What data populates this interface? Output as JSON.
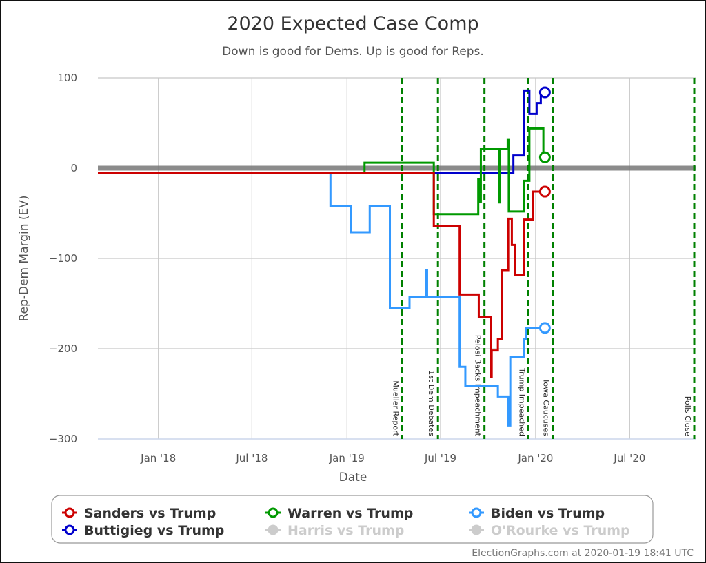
{
  "chart_data": {
    "type": "line",
    "title": "2020 Expected Case Comp",
    "subtitle": "Down is good for Dems. Up is good for Reps.",
    "xlabel": "Date",
    "ylabel": "Rep-Dem Margin (EV)",
    "xlim": [
      "2017-09-06",
      "2020-11-07"
    ],
    "ylim": [
      -300,
      100
    ],
    "yticks": [
      100,
      0,
      -100,
      -200,
      -300
    ],
    "ytick_labels": [
      "100",
      "0",
      "−100",
      "−200",
      "−300"
    ],
    "xticks": [
      {
        "date": "2018-01-01",
        "label": "Jan '18"
      },
      {
        "date": "2018-07-01",
        "label": "Jul '18"
      },
      {
        "date": "2019-01-01",
        "label": "Jan '19"
      },
      {
        "date": "2019-07-01",
        "label": "Jul '19"
      },
      {
        "date": "2020-01-01",
        "label": "Jan '20"
      },
      {
        "date": "2020-07-01",
        "label": "Jul '20"
      }
    ],
    "grid": true,
    "step": true,
    "events": [
      {
        "date": "2019-04-18",
        "label": "Mueller Report"
      },
      {
        "date": "2019-06-26",
        "label": "1st Dem Debates"
      },
      {
        "date": "2019-09-24",
        "label": "Pelosi Backs Impeachment"
      },
      {
        "date": "2019-12-18",
        "label": "Trump Impeached"
      },
      {
        "date": "2020-02-03",
        "label": "Iowa Caucuses"
      },
      {
        "date": "2020-11-03",
        "label": "Polls Close"
      }
    ],
    "series": [
      {
        "name": "Biden vs Trump",
        "color": "#3399ff",
        "visible": true,
        "points": [
          [
            "2017-09-06",
            -5
          ],
          [
            "2018-11-30",
            -42
          ],
          [
            "2019-01-08",
            -71
          ],
          [
            "2019-02-14",
            -42
          ],
          [
            "2019-03-25",
            -155
          ],
          [
            "2019-05-02",
            -143
          ],
          [
            "2019-06-03",
            -113
          ],
          [
            "2019-06-05",
            -143
          ],
          [
            "2019-08-07",
            -220
          ],
          [
            "2019-08-18",
            -241
          ],
          [
            "2019-10-20",
            -253
          ],
          [
            "2019-11-09",
            -285
          ],
          [
            "2019-11-13",
            -209
          ],
          [
            "2019-12-10",
            -189
          ],
          [
            "2019-12-13",
            -177
          ],
          [
            "2020-01-19",
            -177
          ]
        ]
      },
      {
        "name": "Buttigieg vs Trump",
        "color": "#0000cc",
        "visible": true,
        "points": [
          [
            "2017-09-06",
            -5
          ],
          [
            "2019-11-19",
            14
          ],
          [
            "2019-12-09",
            86
          ],
          [
            "2019-12-20",
            60
          ],
          [
            "2020-01-03",
            72
          ],
          [
            "2020-01-11",
            84
          ],
          [
            "2020-01-19",
            84
          ]
        ]
      },
      {
        "name": "Warren vs Trump",
        "color": "#009900",
        "visible": true,
        "points": [
          [
            "2017-09-06",
            -5
          ],
          [
            "2019-02-04",
            6
          ],
          [
            "2019-06-18",
            -51
          ],
          [
            "2019-09-12",
            -12
          ],
          [
            "2019-09-14",
            -37
          ],
          [
            "2019-09-17",
            21
          ],
          [
            "2019-10-22",
            -38
          ],
          [
            "2019-10-24",
            21
          ],
          [
            "2019-11-08",
            32
          ],
          [
            "2019-11-10",
            -48
          ],
          [
            "2019-12-09",
            -14
          ],
          [
            "2019-12-20",
            44
          ],
          [
            "2020-01-16",
            12
          ],
          [
            "2020-01-19",
            12
          ]
        ]
      },
      {
        "name": "Sanders vs Trump",
        "color": "#cc0000",
        "visible": true,
        "points": [
          [
            "2017-09-06",
            -5
          ],
          [
            "2019-06-18",
            -64
          ],
          [
            "2019-08-07",
            -140
          ],
          [
            "2019-09-13",
            -165
          ],
          [
            "2019-10-06",
            -231
          ],
          [
            "2019-10-08",
            -202
          ],
          [
            "2019-10-20",
            -189
          ],
          [
            "2019-10-28",
            -113
          ],
          [
            "2019-11-09",
            -56
          ],
          [
            "2019-11-16",
            -85
          ],
          [
            "2019-11-22",
            -118
          ],
          [
            "2019-12-09",
            -57
          ],
          [
            "2019-12-27",
            -26
          ],
          [
            "2020-01-19",
            -26
          ]
        ]
      },
      {
        "name": "Harris vs Trump",
        "color": "#cccccc",
        "visible": false,
        "points": []
      },
      {
        "name": "O'Rourke vs Trump",
        "color": "#cccccc",
        "visible": false,
        "points": []
      }
    ],
    "legend": {
      "placement": "bottom",
      "items": [
        {
          "label": "Sanders vs Trump",
          "color": "#cc0000",
          "active": true
        },
        {
          "label": "Warren vs Trump",
          "color": "#009900",
          "active": true
        },
        {
          "label": "Biden vs Trump",
          "color": "#3399ff",
          "active": true
        },
        {
          "label": "Buttigieg vs Trump",
          "color": "#0000cc",
          "active": true
        },
        {
          "label": "Harris vs Trump",
          "color": "#cccccc",
          "active": false
        },
        {
          "label": "O'Rourke vs Trump",
          "color": "#cccccc",
          "active": false
        }
      ]
    },
    "credit": "ElectionGraphs.com at 2020-01-19 18:41 UTC"
  }
}
